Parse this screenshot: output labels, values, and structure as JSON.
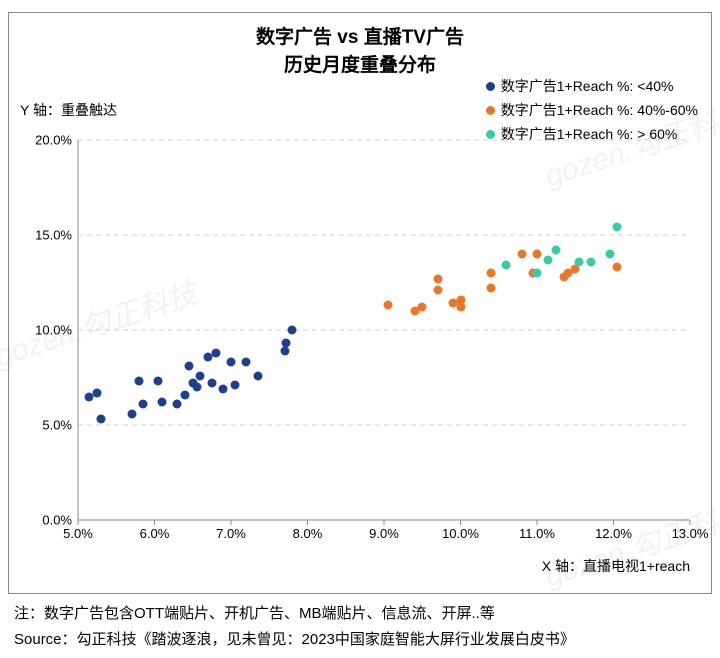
{
  "title_line1": "数字广告 vs 直播TV广告",
  "title_line2": "历史月度重叠分布",
  "y_axis_title": "Y 轴：重叠触达",
  "x_axis_title": "X 轴：直播电视1+reach",
  "legend": [
    {
      "label": "数字广告1+Reach %: <40%",
      "color": "#1f3f8c"
    },
    {
      "label": "数字广告1+Reach %: 40%-60%",
      "color": "#e8762d"
    },
    {
      "label": "数字广告1+Reach %: > 60%",
      "color": "#3cc9a7"
    }
  ],
  "chart": {
    "type": "scatter",
    "background_color": "#ffffff",
    "grid_color": "#d0d0d0",
    "grid_dash": "5 4",
    "axis_color": "#888888",
    "xlim": [
      5.0,
      13.0
    ],
    "ylim": [
      0.0,
      20.0
    ],
    "xticks": [
      5.0,
      6.0,
      7.0,
      8.0,
      9.0,
      10.0,
      11.0,
      12.0,
      13.0
    ],
    "yticks": [
      0.0,
      5.0,
      10.0,
      15.0,
      20.0
    ],
    "xtick_format": "pct1",
    "ytick_format": "pct1",
    "marker_size": 9,
    "tick_fontsize": 13,
    "series": [
      {
        "name": "lt40",
        "color": "#1f3f8c",
        "points": [
          [
            5.15,
            6.5
          ],
          [
            5.25,
            6.7
          ],
          [
            5.3,
            5.3
          ],
          [
            5.7,
            5.6
          ],
          [
            5.8,
            7.3
          ],
          [
            5.85,
            6.1
          ],
          [
            6.05,
            7.3
          ],
          [
            6.1,
            6.2
          ],
          [
            6.3,
            6.1
          ],
          [
            6.4,
            6.6
          ],
          [
            6.45,
            8.1
          ],
          [
            6.5,
            7.2
          ],
          [
            6.55,
            7.0
          ],
          [
            6.6,
            7.6
          ],
          [
            6.7,
            8.6
          ],
          [
            6.75,
            7.2
          ],
          [
            6.8,
            8.8
          ],
          [
            6.9,
            6.9
          ],
          [
            7.0,
            8.3
          ],
          [
            7.05,
            7.1
          ],
          [
            7.2,
            8.3
          ],
          [
            7.35,
            7.6
          ],
          [
            7.7,
            8.9
          ],
          [
            7.72,
            9.3
          ],
          [
            7.8,
            10.0
          ]
        ]
      },
      {
        "name": "40to60",
        "color": "#e8762d",
        "points": [
          [
            9.05,
            11.3
          ],
          [
            9.4,
            11.0
          ],
          [
            9.5,
            11.2
          ],
          [
            9.7,
            12.1
          ],
          [
            9.7,
            12.7
          ],
          [
            9.9,
            11.4
          ],
          [
            10.0,
            11.6
          ],
          [
            10.0,
            11.2
          ],
          [
            10.4,
            13.0
          ],
          [
            10.4,
            12.2
          ],
          [
            10.8,
            14.0
          ],
          [
            11.0,
            14.0
          ],
          [
            10.95,
            13.0
          ],
          [
            11.35,
            12.8
          ],
          [
            11.4,
            13.0
          ],
          [
            11.5,
            13.2
          ],
          [
            12.05,
            13.3
          ]
        ]
      },
      {
        "name": "gt60",
        "color": "#3cc9a7",
        "points": [
          [
            10.6,
            13.4
          ],
          [
            11.0,
            13.0
          ],
          [
            11.15,
            13.7
          ],
          [
            11.25,
            14.2
          ],
          [
            11.55,
            13.6
          ],
          [
            11.7,
            13.6
          ],
          [
            11.95,
            14.0
          ],
          [
            12.05,
            15.4
          ]
        ]
      }
    ]
  },
  "note": "注：数字广告包含OTT端贴片、开机广告、MB端贴片、信息流、开屏..等",
  "source": "Source：勾正科技《踏波逐浪，见未曾见：2023中国家庭智能大屏行业发展白皮书》",
  "watermark_text": "gozen.勾正科技"
}
